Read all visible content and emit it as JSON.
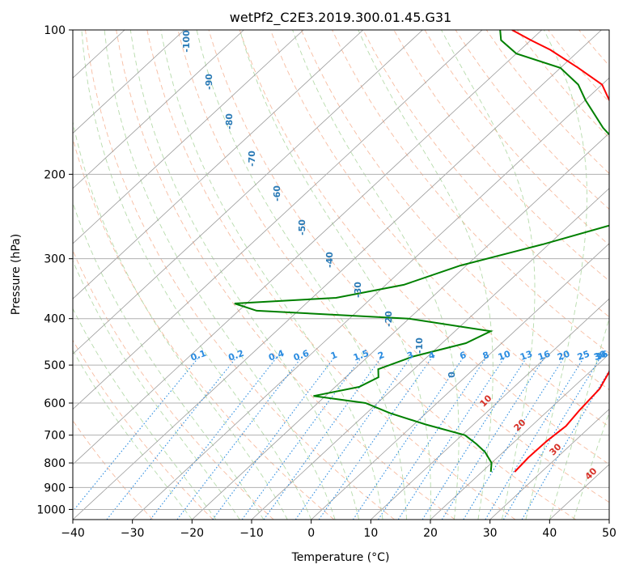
{
  "chart_data": {
    "type": "line",
    "title": "wetPf2_C2E3.2019.300.01.45.G31",
    "xlabel": "Temperature (°C)",
    "ylabel": "Pressure (hPa)",
    "xlim": [
      -40,
      50
    ],
    "ylim": [
      1050,
      100
    ],
    "y_scale": "log",
    "x_ticks": [
      "−40",
      "−30",
      "−20",
      "−10",
      "0",
      "10",
      "20",
      "30",
      "40",
      "50"
    ],
    "y_ticks": [
      "100",
      "200",
      "300",
      "400",
      "500",
      "600",
      "700",
      "800",
      "900",
      "1000"
    ],
    "skew_t": true,
    "grid": true,
    "series": [
      {
        "color": "#ff0000",
        "points": [
          [
            25.5,
            835
          ],
          [
            25.2,
            780
          ],
          [
            25.3,
            720
          ],
          [
            25.8,
            670
          ],
          [
            25.2,
            620
          ],
          [
            24.7,
            560
          ],
          [
            23.0,
            510
          ],
          [
            20.3,
            470
          ],
          [
            19.0,
            440
          ],
          [
            17.8,
            400
          ],
          [
            16.5,
            370
          ],
          [
            13.0,
            330
          ],
          [
            9.0,
            300
          ],
          [
            5.0,
            270
          ],
          [
            2.0,
            245
          ],
          [
            -1.0,
            220
          ],
          [
            -8.0,
            190
          ],
          [
            -17.0,
            160
          ],
          [
            -26.0,
            140
          ],
          [
            -30.0,
            130
          ],
          [
            -37.0,
            120
          ],
          [
            -45.0,
            110
          ],
          [
            -50.0,
            105
          ],
          [
            -55.0,
            100
          ]
        ]
      },
      {
        "color": "#008000",
        "points": [
          [
            21.5,
            835
          ],
          [
            20.0,
            800
          ],
          [
            17.0,
            760
          ],
          [
            14.0,
            730
          ],
          [
            10.5,
            700
          ],
          [
            2.0,
            665
          ],
          [
            -6.0,
            630
          ],
          [
            -12.0,
            600
          ],
          [
            -22.0,
            580
          ],
          [
            -16.0,
            555
          ],
          [
            -14.5,
            530
          ],
          [
            -16.0,
            510
          ],
          [
            -12.5,
            480
          ],
          [
            -6.0,
            450
          ],
          [
            -4.0,
            425
          ],
          [
            -20.0,
            400
          ],
          [
            -47.0,
            385
          ],
          [
            -52.0,
            372
          ],
          [
            -36.0,
            362
          ],
          [
            -27.0,
            340
          ],
          [
            -21.0,
            310
          ],
          [
            -11.0,
            280
          ],
          [
            -3.0,
            255
          ],
          [
            -1.5,
            240
          ],
          [
            -4.0,
            220
          ],
          [
            -10.0,
            190
          ],
          [
            -22.0,
            160
          ],
          [
            -30.0,
            140
          ],
          [
            -34.0,
            130
          ],
          [
            -40.0,
            120
          ],
          [
            -50.0,
            112
          ],
          [
            -55.0,
            105
          ],
          [
            -57.0,
            100
          ]
        ]
      }
    ],
    "isotherm_labels": [
      "-100",
      "-90",
      "-80",
      "-70",
      "-60",
      "-50",
      "-40",
      "-30",
      "-20",
      "-10",
      "0",
      "10",
      "20",
      "30",
      "40"
    ],
    "mixing_ratio_labels": [
      "0.1",
      "0.2",
      "0.4",
      "0.6",
      "1",
      "1.5",
      "2",
      "3",
      "4",
      "6",
      "8",
      "10",
      "13",
      "16",
      "20",
      "25",
      "30",
      "36"
    ],
    "colors": {
      "temperature": "#ff0000",
      "dewpoint": "#008000",
      "dry_adiabat": "#f4a582",
      "moist_adiabat": "#9ecf8f",
      "mixing_ratio": "#2b8ce0",
      "isotherm_label": "#2c7bb6",
      "dry_adiabat_label": "#d73027"
    }
  }
}
